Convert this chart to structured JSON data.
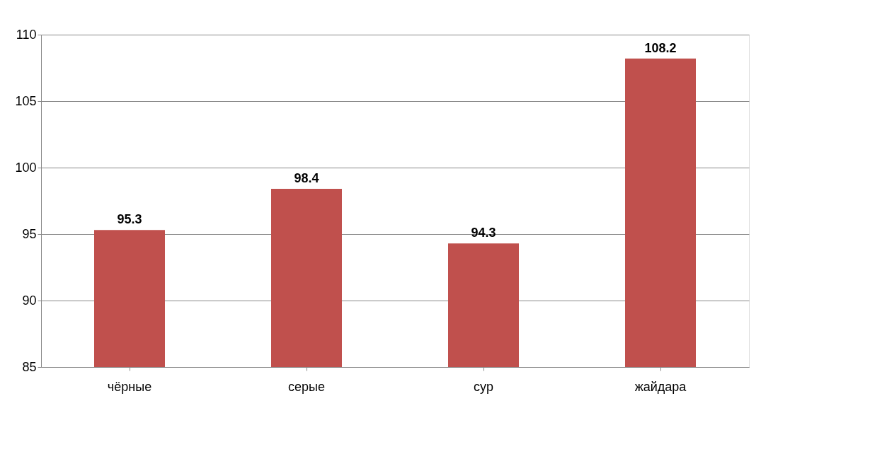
{
  "chart_data": {
    "type": "bar",
    "categories": [
      "чёрные",
      "серые",
      "сур",
      "жайдара"
    ],
    "values": [
      95.3,
      98.4,
      94.3,
      108.2
    ],
    "color": "#c0504d",
    "ylim": [
      85,
      110
    ],
    "yticks": [
      85,
      90,
      95,
      100,
      105,
      110
    ],
    "grid": "y",
    "data_labels": true
  }
}
